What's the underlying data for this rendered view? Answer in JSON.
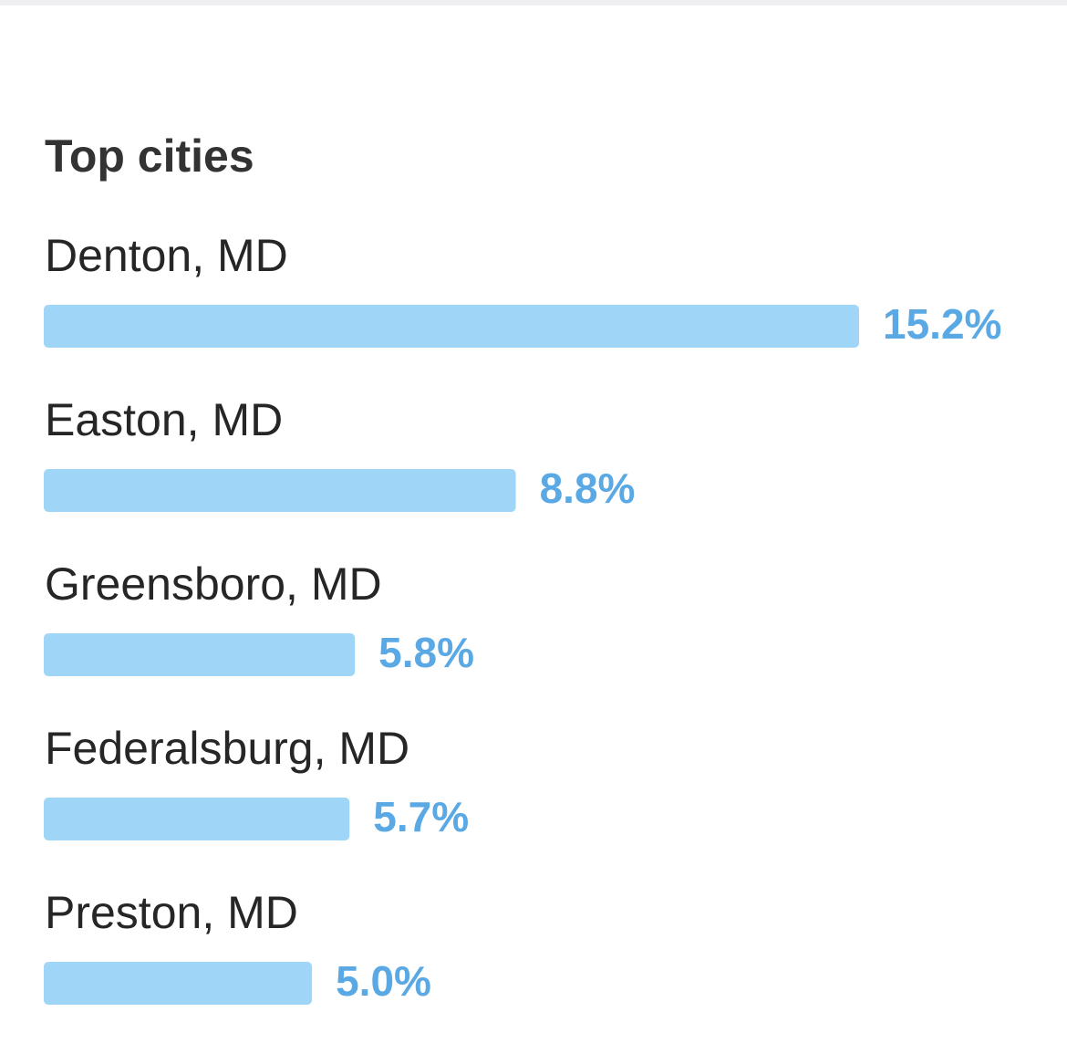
{
  "chart_data": {
    "type": "bar",
    "orientation": "horizontal",
    "title": "Top cities",
    "categories": [
      "Denton, MD",
      "Easton, MD",
      "Greensboro, MD",
      "Federalsburg, MD",
      "Preston, MD"
    ],
    "values": [
      15.2,
      8.8,
      5.8,
      5.7,
      5.0
    ],
    "value_labels": [
      "15.2%",
      "8.8%",
      "5.8%",
      "5.7%",
      "5.0%"
    ],
    "color": "#9fd5f7",
    "label_color": "#5aa9e4"
  }
}
